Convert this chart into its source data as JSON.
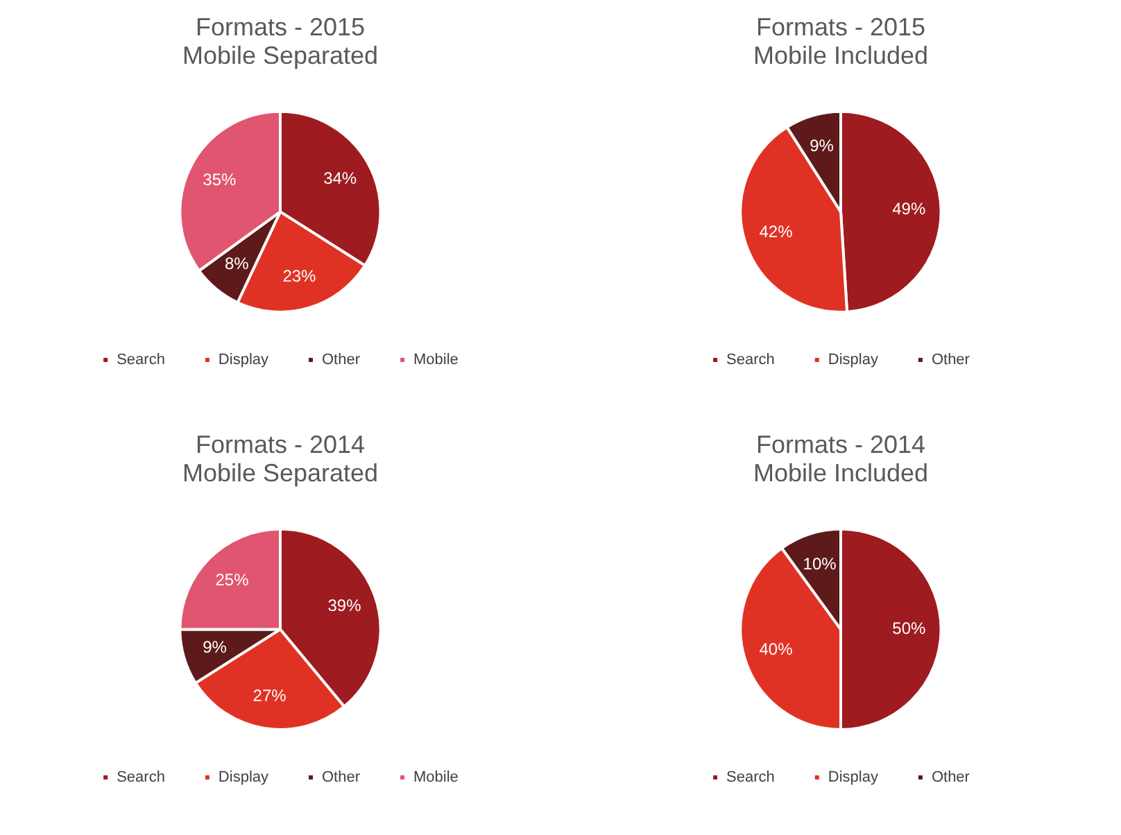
{
  "chart_data": [
    {
      "type": "pie",
      "title": "Formats - 2015",
      "subtitle": "Mobile Separated",
      "categories": [
        "Search",
        "Display",
        "Other",
        "Mobile"
      ],
      "values": [
        34,
        23,
        8,
        35
      ],
      "value_labels": [
        "34%",
        "23%",
        "8%",
        "35%"
      ],
      "colors": [
        "#9e1b20",
        "#e03224",
        "#5e1a1a",
        "#e05570"
      ],
      "legend": "bottom"
    },
    {
      "type": "pie",
      "title": "Formats - 2015",
      "subtitle": "Mobile Included",
      "categories": [
        "Search",
        "Display",
        "Other"
      ],
      "values": [
        49,
        42,
        9
      ],
      "value_labels": [
        "49%",
        "42%",
        "9%"
      ],
      "colors": [
        "#9e1b20",
        "#e03224",
        "#5e1a1a"
      ],
      "legend": "bottom"
    },
    {
      "type": "pie",
      "title": "Formats - 2014",
      "subtitle": "Mobile Separated",
      "categories": [
        "Search",
        "Display",
        "Other",
        "Mobile"
      ],
      "values": [
        39,
        27,
        9,
        25
      ],
      "value_labels": [
        "39%",
        "27%",
        "9%",
        "25%"
      ],
      "colors": [
        "#9e1b20",
        "#e03224",
        "#5e1a1a",
        "#e05570"
      ],
      "legend": "bottom"
    },
    {
      "type": "pie",
      "title": "Formats - 2014",
      "subtitle": "Mobile Included",
      "categories": [
        "Search",
        "Display",
        "Other"
      ],
      "values": [
        50,
        40,
        10
      ],
      "value_labels": [
        "50%",
        "40%",
        "10%"
      ],
      "colors": [
        "#9e1b20",
        "#e03224",
        "#5e1a1a"
      ],
      "legend": "bottom"
    }
  ]
}
